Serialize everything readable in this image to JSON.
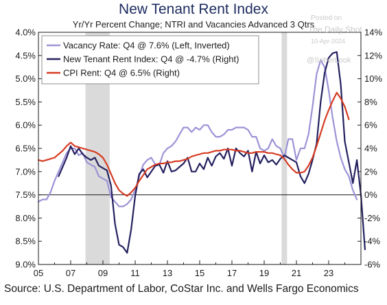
{
  "watermark": {
    "line1": "Posted on",
    "line2": "The Daily Shot",
    "date": "10-Apr-2024",
    "handle": "@SoberLook"
  },
  "source": "Source: U.S. Department of Labor, CoStar Inc. and Wells Fargo Economics",
  "chart_data": {
    "type": "line",
    "title": "New Tenant Rent Index",
    "subtitle": "Yr/Yr Percent Change; NTRI and Vacancies Advanced 3 Qtrs",
    "x_range": [
      2005,
      2025
    ],
    "x_ticks": [
      2005,
      2007,
      2009,
      2011,
      2013,
      2015,
      2017,
      2019,
      2021,
      2023
    ],
    "x_tick_labels": [
      "05",
      "07",
      "09",
      "11",
      "13",
      "15",
      "17",
      "19",
      "21",
      "23"
    ],
    "y_left": {
      "min": 4.0,
      "max": 9.0,
      "inverted": true,
      "ticks": [
        4.0,
        4.5,
        5.0,
        5.5,
        6.0,
        6.5,
        7.0,
        7.5,
        8.0,
        8.5,
        9.0
      ],
      "tick_labels": [
        "4.0%",
        "4.5%",
        "5.0%",
        "5.5%",
        "6.0%",
        "6.5%",
        "7.0%",
        "7.5%",
        "8.0%",
        "8.5%",
        "9.0%"
      ]
    },
    "y_right": {
      "min": -6,
      "max": 14,
      "ticks": [
        14,
        12,
        10,
        8,
        6,
        4,
        2,
        0,
        -2,
        -4,
        -6
      ],
      "tick_labels": [
        "14%",
        "12%",
        "10%",
        "8%",
        "6%",
        "4%",
        "2%",
        "0%",
        "-2%",
        "-4%",
        "-6%"
      ]
    },
    "zero_line_right": 0,
    "recessions": [
      [
        2007.92,
        2009.42
      ],
      [
        2020.08,
        2020.42
      ]
    ],
    "legend_position": "top-left",
    "grid": false,
    "series": [
      {
        "name": "Vacancy Rate: Q4 @ 7.6% (Left, Inverted)",
        "axis": "left",
        "color": "#9b93d6",
        "width": 2.2,
        "points": [
          [
            2005.0,
            7.65
          ],
          [
            2005.25,
            7.6
          ],
          [
            2005.5,
            7.6
          ],
          [
            2005.75,
            7.45
          ],
          [
            2006.0,
            7.2
          ],
          [
            2006.25,
            7.0
          ],
          [
            2006.5,
            6.8
          ],
          [
            2006.75,
            6.6
          ],
          [
            2007.0,
            6.5
          ],
          [
            2007.25,
            6.5
          ],
          [
            2007.5,
            6.65
          ],
          [
            2007.75,
            6.6
          ],
          [
            2008.0,
            6.8
          ],
          [
            2008.25,
            6.85
          ],
          [
            2008.5,
            6.9
          ],
          [
            2008.75,
            7.1
          ],
          [
            2009.0,
            7.15
          ],
          [
            2009.25,
            7.2
          ],
          [
            2009.5,
            7.55
          ],
          [
            2009.75,
            7.65
          ],
          [
            2010.0,
            7.75
          ],
          [
            2010.25,
            7.75
          ],
          [
            2010.5,
            7.7
          ],
          [
            2010.75,
            7.6
          ],
          [
            2011.0,
            7.4
          ],
          [
            2011.25,
            7.1
          ],
          [
            2011.5,
            6.85
          ],
          [
            2011.75,
            6.75
          ],
          [
            2012.0,
            6.7
          ],
          [
            2012.25,
            6.85
          ],
          [
            2012.5,
            6.85
          ],
          [
            2012.75,
            6.6
          ],
          [
            2013.0,
            6.5
          ],
          [
            2013.25,
            6.45
          ],
          [
            2013.5,
            6.35
          ],
          [
            2013.75,
            6.2
          ],
          [
            2014.0,
            6.05
          ],
          [
            2014.25,
            6.05
          ],
          [
            2014.5,
            6.15
          ],
          [
            2014.75,
            6.05
          ],
          [
            2015.0,
            6.1
          ],
          [
            2015.25,
            6.0
          ],
          [
            2015.5,
            6.0
          ],
          [
            2015.75,
            6.15
          ],
          [
            2016.0,
            6.25
          ],
          [
            2016.25,
            6.25
          ],
          [
            2016.5,
            6.2
          ],
          [
            2016.75,
            6.1
          ],
          [
            2017.0,
            6.1
          ],
          [
            2017.25,
            6.05
          ],
          [
            2017.5,
            6.05
          ],
          [
            2017.75,
            6.05
          ],
          [
            2018.0,
            6.1
          ],
          [
            2018.25,
            6.25
          ],
          [
            2018.5,
            6.25
          ],
          [
            2018.75,
            6.5
          ],
          [
            2019.0,
            6.55
          ],
          [
            2019.25,
            6.5
          ],
          [
            2019.5,
            6.3
          ],
          [
            2019.75,
            6.45
          ],
          [
            2020.0,
            6.5
          ],
          [
            2020.25,
            6.7
          ],
          [
            2020.5,
            6.3
          ],
          [
            2020.75,
            6.3
          ],
          [
            2021.0,
            6.75
          ],
          [
            2021.25,
            6.5
          ],
          [
            2021.5,
            6.5
          ],
          [
            2021.75,
            6.2
          ],
          [
            2022.0,
            5.6
          ],
          [
            2022.25,
            4.9
          ],
          [
            2022.5,
            4.6
          ],
          [
            2022.75,
            4.75
          ],
          [
            2023.0,
            5.25
          ],
          [
            2023.25,
            5.85
          ],
          [
            2023.5,
            6.35
          ],
          [
            2023.75,
            6.7
          ],
          [
            2024.0,
            6.95
          ],
          [
            2024.25,
            7.1
          ],
          [
            2024.5,
            7.4
          ],
          [
            2024.75,
            7.6
          ]
        ]
      },
      {
        "name": "New Tenant Rent Index: Q4 @ -4.7% (Right)",
        "axis": "right",
        "color": "#24205e",
        "width": 2.2,
        "points": [
          [
            2006.25,
            1.6
          ],
          [
            2006.5,
            2.4
          ],
          [
            2006.75,
            3.2
          ],
          [
            2007.0,
            4.2
          ],
          [
            2007.25,
            3.5
          ],
          [
            2007.5,
            4.0
          ],
          [
            2007.75,
            3.5
          ],
          [
            2008.0,
            3.2
          ],
          [
            2008.25,
            3.0
          ],
          [
            2008.5,
            3.2
          ],
          [
            2008.75,
            2.5
          ],
          [
            2009.0,
            2.3
          ],
          [
            2009.25,
            2.1
          ],
          [
            2009.5,
            0.8
          ],
          [
            2009.75,
            -2.5
          ],
          [
            2010.0,
            -4.3
          ],
          [
            2010.25,
            -4.5
          ],
          [
            2010.5,
            -5.0
          ],
          [
            2010.75,
            -3.0
          ],
          [
            2011.0,
            -0.1
          ],
          [
            2011.25,
            1.8
          ],
          [
            2011.5,
            2.2
          ],
          [
            2011.75,
            1.5
          ],
          [
            2012.0,
            2.0
          ],
          [
            2012.25,
            2.5
          ],
          [
            2012.5,
            2.6
          ],
          [
            2012.75,
            1.9
          ],
          [
            2013.0,
            2.9
          ],
          [
            2013.25,
            2.0
          ],
          [
            2013.5,
            2.1
          ],
          [
            2013.75,
            2.4
          ],
          [
            2014.0,
            2.7
          ],
          [
            2014.25,
            3.2
          ],
          [
            2014.5,
            2.0
          ],
          [
            2014.75,
            2.0
          ],
          [
            2015.0,
            2.7
          ],
          [
            2015.25,
            2.2
          ],
          [
            2015.5,
            3.2
          ],
          [
            2015.75,
            2.5
          ],
          [
            2016.0,
            3.3
          ],
          [
            2016.25,
            3.6
          ],
          [
            2016.5,
            3.1
          ],
          [
            2016.75,
            4.0
          ],
          [
            2017.0,
            2.5
          ],
          [
            2017.25,
            4.0
          ],
          [
            2017.5,
            3.6
          ],
          [
            2017.75,
            3.3
          ],
          [
            2018.0,
            3.8
          ],
          [
            2018.25,
            2.0
          ],
          [
            2018.5,
            3.7
          ],
          [
            2018.75,
            2.7
          ],
          [
            2019.0,
            3.4
          ],
          [
            2019.25,
            2.8
          ],
          [
            2019.5,
            3.0
          ],
          [
            2019.75,
            2.6
          ],
          [
            2020.0,
            3.1
          ],
          [
            2020.25,
            3.4
          ],
          [
            2020.5,
            3.2
          ],
          [
            2020.75,
            3.0
          ],
          [
            2021.0,
            2.8
          ],
          [
            2021.25,
            1.6
          ],
          [
            2021.5,
            1.0
          ],
          [
            2021.75,
            1.8
          ],
          [
            2022.0,
            3.0
          ],
          [
            2022.25,
            4.4
          ],
          [
            2022.5,
            8.0
          ],
          [
            2022.75,
            10.5
          ],
          [
            2023.0,
            11.8
          ],
          [
            2023.25,
            12.2
          ],
          [
            2023.5,
            12.3
          ],
          [
            2023.75,
            9.5
          ],
          [
            2024.0,
            4.6
          ],
          [
            2024.25,
            2.8
          ],
          [
            2024.5,
            1.0
          ],
          [
            2024.75,
            3.0
          ],
          [
            2025.0,
            0.0
          ],
          [
            2025.25,
            -4.7
          ]
        ]
      },
      {
        "name": "CPI Rent: Q4 @ 6.5% (Right)",
        "axis": "right",
        "color": "#d63b22",
        "width": 2.2,
        "points": [
          [
            2005.0,
            3.0
          ],
          [
            2005.25,
            2.9
          ],
          [
            2005.5,
            3.0
          ],
          [
            2005.75,
            3.1
          ],
          [
            2006.0,
            3.2
          ],
          [
            2006.25,
            3.5
          ],
          [
            2006.5,
            3.8
          ],
          [
            2006.75,
            4.2
          ],
          [
            2007.0,
            4.5
          ],
          [
            2007.25,
            4.2
          ],
          [
            2007.5,
            4.1
          ],
          [
            2007.75,
            4.0
          ],
          [
            2008.0,
            3.9
          ],
          [
            2008.25,
            3.8
          ],
          [
            2008.5,
            3.7
          ],
          [
            2008.75,
            3.5
          ],
          [
            2009.0,
            3.2
          ],
          [
            2009.25,
            2.6
          ],
          [
            2009.5,
            1.8
          ],
          [
            2009.75,
            1.0
          ],
          [
            2010.0,
            0.4
          ],
          [
            2010.25,
            0.1
          ],
          [
            2010.5,
            -0.1
          ],
          [
            2010.75,
            0.2
          ],
          [
            2011.0,
            0.6
          ],
          [
            2011.25,
            1.2
          ],
          [
            2011.5,
            1.7
          ],
          [
            2011.75,
            2.2
          ],
          [
            2012.0,
            2.4
          ],
          [
            2012.25,
            2.6
          ],
          [
            2012.5,
            2.7
          ],
          [
            2012.75,
            2.7
          ],
          [
            2013.0,
            2.8
          ],
          [
            2013.25,
            2.8
          ],
          [
            2013.5,
            2.9
          ],
          [
            2013.75,
            2.9
          ],
          [
            2014.0,
            3.0
          ],
          [
            2014.25,
            3.1
          ],
          [
            2014.5,
            3.3
          ],
          [
            2014.75,
            3.4
          ],
          [
            2015.0,
            3.5
          ],
          [
            2015.25,
            3.6
          ],
          [
            2015.5,
            3.6
          ],
          [
            2015.75,
            3.7
          ],
          [
            2016.0,
            3.8
          ],
          [
            2016.25,
            3.8
          ],
          [
            2016.5,
            3.9
          ],
          [
            2016.75,
            3.9
          ],
          [
            2017.0,
            3.9
          ],
          [
            2017.25,
            3.8
          ],
          [
            2017.5,
            3.8
          ],
          [
            2017.75,
            3.7
          ],
          [
            2018.0,
            3.6
          ],
          [
            2018.25,
            3.6
          ],
          [
            2018.5,
            3.7
          ],
          [
            2018.75,
            3.7
          ],
          [
            2019.0,
            3.7
          ],
          [
            2019.25,
            3.6
          ],
          [
            2019.5,
            3.6
          ],
          [
            2019.75,
            3.5
          ],
          [
            2020.0,
            3.4
          ],
          [
            2020.25,
            3.1
          ],
          [
            2020.5,
            2.6
          ],
          [
            2020.75,
            2.2
          ],
          [
            2021.0,
            1.9
          ],
          [
            2021.25,
            1.9
          ],
          [
            2021.5,
            2.0
          ],
          [
            2021.75,
            2.5
          ],
          [
            2022.0,
            3.2
          ],
          [
            2022.25,
            4.2
          ],
          [
            2022.5,
            5.3
          ],
          [
            2022.75,
            6.4
          ],
          [
            2023.0,
            7.3
          ],
          [
            2023.25,
            8.1
          ],
          [
            2023.5,
            8.8
          ],
          [
            2023.75,
            8.3
          ],
          [
            2024.0,
            7.6
          ],
          [
            2024.25,
            6.5
          ]
        ]
      }
    ]
  }
}
